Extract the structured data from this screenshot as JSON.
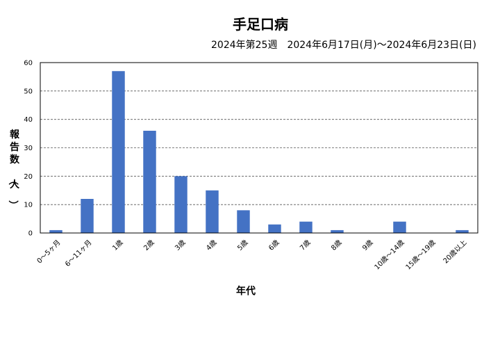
{
  "chart_data": {
    "type": "bar",
    "title": "手足口病",
    "subtitle": "2024年第25週　2024年6月17日(月)～2024年6月23日(日)",
    "xlabel": "年代",
    "ylabel": "報告数（人）",
    "ylim": [
      0,
      60
    ],
    "yticks": [
      0,
      10,
      20,
      30,
      40,
      50,
      60
    ],
    "grid": true,
    "categories": [
      "0～5ヶ月",
      "6～11ヶ月",
      "1歳",
      "2歳",
      "3歳",
      "4歳",
      "5歳",
      "6歳",
      "7歳",
      "8歳",
      "9歳",
      "10歳～14歳",
      "15歳～19歳",
      "20歳以上"
    ],
    "values": [
      1,
      12,
      57,
      36,
      20,
      15,
      8,
      3,
      4,
      1,
      0,
      4,
      0,
      1
    ],
    "bar_color": "#4472c4"
  }
}
